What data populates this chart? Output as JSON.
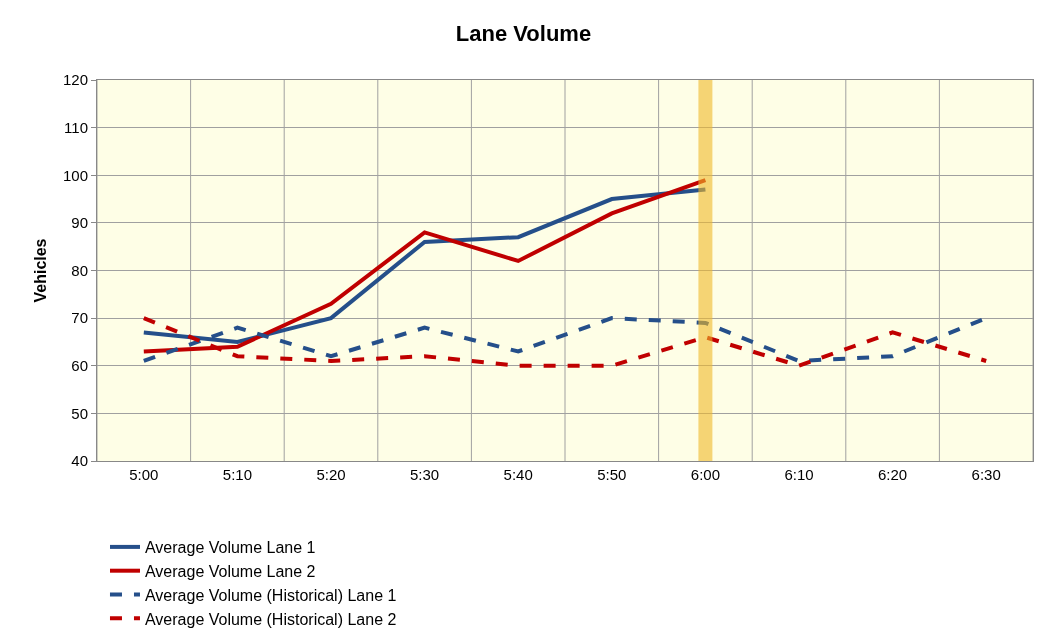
{
  "chart_data": {
    "type": "line",
    "title": "Lane Volume",
    "ylabel": "Vehicles",
    "categories": [
      "5:00",
      "5:10",
      "5:20",
      "5:30",
      "5:40",
      "5:50",
      "6:00",
      "6:10",
      "6:20",
      "6:30"
    ],
    "series": [
      {
        "name": "Average Volume Lane 1",
        "color": "#254f8a",
        "line_style": "solid",
        "values": [
          67,
          65,
          70,
          86,
          87,
          95,
          97,
          null,
          null,
          null
        ]
      },
      {
        "name": "Average Volume Lane 2",
        "color": "#c00000",
        "line_style": "solid",
        "values": [
          63,
          64,
          73,
          88,
          82,
          92,
          99,
          null,
          null,
          null
        ]
      },
      {
        "name": "Average Volume (Historical) Lane 1",
        "color": "#254f8a",
        "line_style": "dashed",
        "values": [
          61,
          68,
          62,
          68,
          63,
          70,
          69,
          61,
          62,
          70
        ]
      },
      {
        "name": "Average Volume (Historical) Lane 2",
        "color": "#c00000",
        "line_style": "dashed",
        "values": [
          70,
          62,
          61,
          62,
          60,
          60,
          66,
          60,
          67,
          61
        ]
      }
    ],
    "ylim": [
      40,
      120
    ],
    "yticks": [
      40,
      50,
      60,
      70,
      80,
      90,
      100,
      110,
      120
    ],
    "grid": true,
    "legend": "bottom",
    "ref_lines": [
      {
        "axis": "x",
        "value": "6:00",
        "color": "#f0b92a"
      }
    ]
  }
}
